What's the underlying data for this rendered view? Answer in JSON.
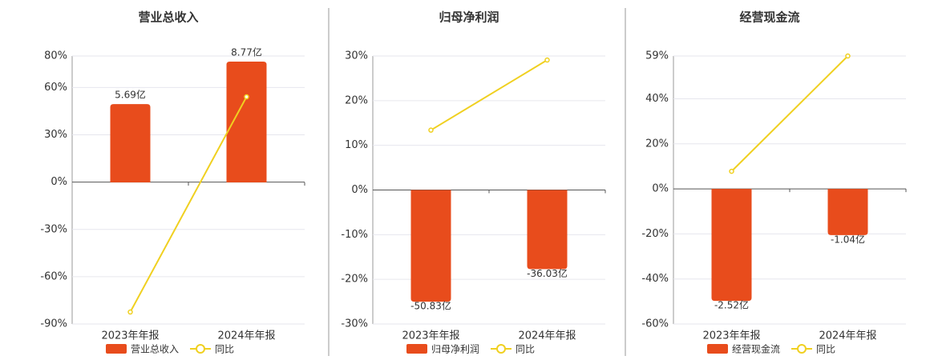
{
  "chart_data": [
    {
      "type": "bar",
      "title": "营业总收入",
      "categories": [
        "2023年年报",
        "2024年年报"
      ],
      "series": [
        {
          "name": "营业总收入",
          "color": "#e84c1c",
          "axis": "y2",
          "values": [
            5.69,
            8.77
          ],
          "value_labels": [
            "5.69亿",
            "8.77亿"
          ]
        },
        {
          "name": "同比",
          "type": "line",
          "color": "#f0d020",
          "values": [
            -82.4,
            54.1
          ]
        }
      ],
      "ylim": [
        -90,
        80
      ],
      "yticks": [
        {
          "value": 80,
          "label": "80%"
        },
        {
          "value": 60,
          "label": "60%"
        },
        {
          "value": 30,
          "label": "30%"
        },
        {
          "value": 0,
          "label": "0%"
        },
        {
          "value": -30,
          "label": "-30%"
        },
        {
          "value": -60,
          "label": "-60%"
        },
        {
          "value": -90,
          "label": "-90%"
        }
      ],
      "y2lim": [
        -10.28,
        9.18
      ],
      "grid": true
    },
    {
      "type": "bar",
      "title": "归母净利润",
      "categories": [
        "2023年年报",
        "2024年年报"
      ],
      "series": [
        {
          "name": "归母净利润",
          "color": "#e84c1c",
          "axis": "y2",
          "values": [
            -50.83,
            -36.03
          ],
          "value_labels": [
            "-50.83亿",
            "-36.03亿"
          ]
        },
        {
          "name": "同比",
          "type": "line",
          "color": "#f0d020",
          "values": [
            13.4,
            29.1
          ]
        }
      ],
      "ylim": [
        -30,
        30
      ],
      "yticks": [
        {
          "value": 30,
          "label": "30%"
        },
        {
          "value": 20,
          "label": "20%"
        },
        {
          "value": 10,
          "label": "10%"
        },
        {
          "value": 0,
          "label": "0%"
        },
        {
          "value": -10,
          "label": "-10%"
        },
        {
          "value": -20,
          "label": "-20%"
        },
        {
          "value": -30,
          "label": "-30%"
        }
      ],
      "y2lim": [
        -61,
        61
      ],
      "grid": true
    },
    {
      "type": "bar",
      "title": "经营现金流",
      "categories": [
        "2023年年报",
        "2024年年报"
      ],
      "series": [
        {
          "name": "经营现金流",
          "color": "#e84c1c",
          "axis": "y2",
          "values": [
            -2.52,
            -1.04
          ],
          "value_labels": [
            "-2.52亿",
            "-1.04亿"
          ]
        },
        {
          "name": "同比",
          "type": "line",
          "color": "#f0d020",
          "values": [
            7.8,
            59
          ]
        }
      ],
      "ylim": [
        -60,
        59
      ],
      "yticks": [
        {
          "value": 59,
          "label": "59%"
        },
        {
          "value": 40,
          "label": "40%"
        },
        {
          "value": 20,
          "label": "20%"
        },
        {
          "value": 0,
          "label": "0%"
        },
        {
          "value": -20,
          "label": "-20%"
        },
        {
          "value": -40,
          "label": "-40%"
        },
        {
          "value": -60,
          "label": "-60%"
        }
      ],
      "y2lim": [
        -3.04,
        2.99
      ],
      "grid": true
    }
  ]
}
